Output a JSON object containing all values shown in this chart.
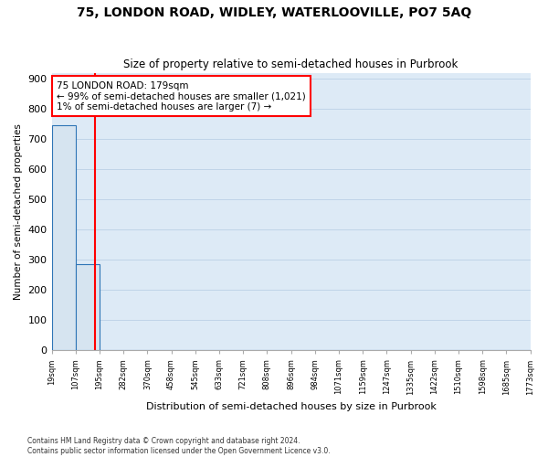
{
  "title": "75, LONDON ROAD, WIDLEY, WATERLOOVILLE, PO7 5AQ",
  "subtitle": "Size of property relative to semi-detached houses in Purbrook",
  "xlabel": "Distribution of semi-detached houses by size in Purbrook",
  "ylabel": "Number of semi-detached properties",
  "bin_labels": [
    "19sqm",
    "107sqm",
    "195sqm",
    "282sqm",
    "370sqm",
    "458sqm",
    "545sqm",
    "633sqm",
    "721sqm",
    "808sqm",
    "896sqm",
    "984sqm",
    "1071sqm",
    "1159sqm",
    "1247sqm",
    "1335sqm",
    "1422sqm",
    "1510sqm",
    "1598sqm",
    "1685sqm",
    "1773sqm"
  ],
  "bar_heights": [
    745,
    285,
    0,
    0,
    0,
    0,
    0,
    0,
    0,
    0,
    0,
    0,
    0,
    0,
    0,
    0,
    0,
    0,
    0,
    0
  ],
  "bar_color": "#d6e4f0",
  "bar_edge_color": "#2e75b6",
  "annotation_text_line1": "75 LONDON ROAD: 179sqm",
  "annotation_text_line2": "← 99% of semi-detached houses are smaller (1,021)",
  "annotation_text_line3": "1% of semi-detached houses are larger (7) →",
  "annotation_box_color": "white",
  "annotation_box_edge_color": "red",
  "property_line_color": "red",
  "ylim": [
    0,
    920
  ],
  "yticks": [
    0,
    100,
    200,
    300,
    400,
    500,
    600,
    700,
    800,
    900
  ],
  "footer_line1": "Contains HM Land Registry data © Crown copyright and database right 2024.",
  "footer_line2": "Contains public sector information licensed under the Open Government Licence v3.0.",
  "grid_color": "#c0d4e8",
  "background_color": "#ddeaf6",
  "title_fontsize": 10,
  "subtitle_fontsize": 9
}
